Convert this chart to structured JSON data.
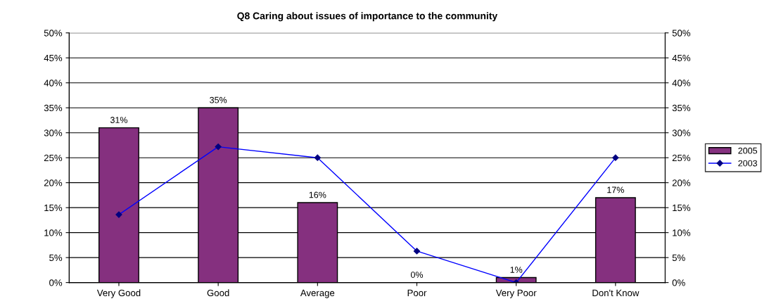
{
  "chart_data": {
    "type": "bar",
    "title": "Q8 Caring about issues of importance to the community",
    "categories": [
      "Very Good",
      "Good",
      "Average",
      "Poor",
      "Very Poor",
      "Don't Know"
    ],
    "series": [
      {
        "name": "2005",
        "color": "#85307f",
        "values": [
          31,
          35,
          16,
          0,
          1,
          17
        ],
        "value_labels": [
          "31%",
          "35%",
          "16%",
          "0%",
          "1%",
          "17%"
        ]
      },
      {
        "name": "2003",
        "type": "line",
        "color": "#0000ff",
        "marker": "diamond",
        "values": [
          13.6,
          27.2,
          25,
          6.3,
          0,
          25
        ]
      }
    ],
    "ylim": [
      0,
      50
    ],
    "yticks": [
      {
        "value": 0,
        "label": "0%"
      },
      {
        "value": 5,
        "label": "5%"
      },
      {
        "value": 10,
        "label": "10%"
      },
      {
        "value": 15,
        "label": "15%"
      },
      {
        "value": 20,
        "label": "20%"
      },
      {
        "value": 25,
        "label": "25%"
      },
      {
        "value": 30,
        "label": "30%"
      },
      {
        "value": 35,
        "label": "35%"
      },
      {
        "value": 40,
        "label": "40%"
      },
      {
        "value": 45,
        "label": "45%"
      },
      {
        "value": 50,
        "label": "50%"
      }
    ],
    "y2lim": [
      0,
      50
    ],
    "y2ticks": [
      {
        "value": 0,
        "label": "0%"
      },
      {
        "value": 5,
        "label": "5%"
      },
      {
        "value": 10,
        "label": "10%"
      },
      {
        "value": 15,
        "label": "15%"
      },
      {
        "value": 20,
        "label": "20%"
      },
      {
        "value": 25,
        "label": "25%"
      },
      {
        "value": 30,
        "label": "30%"
      },
      {
        "value": 35,
        "label": "35%"
      },
      {
        "value": 40,
        "label": "40%"
      },
      {
        "value": 45,
        "label": "45%"
      },
      {
        "value": 50,
        "label": "50%"
      }
    ],
    "grid": "y",
    "legend": "right"
  }
}
